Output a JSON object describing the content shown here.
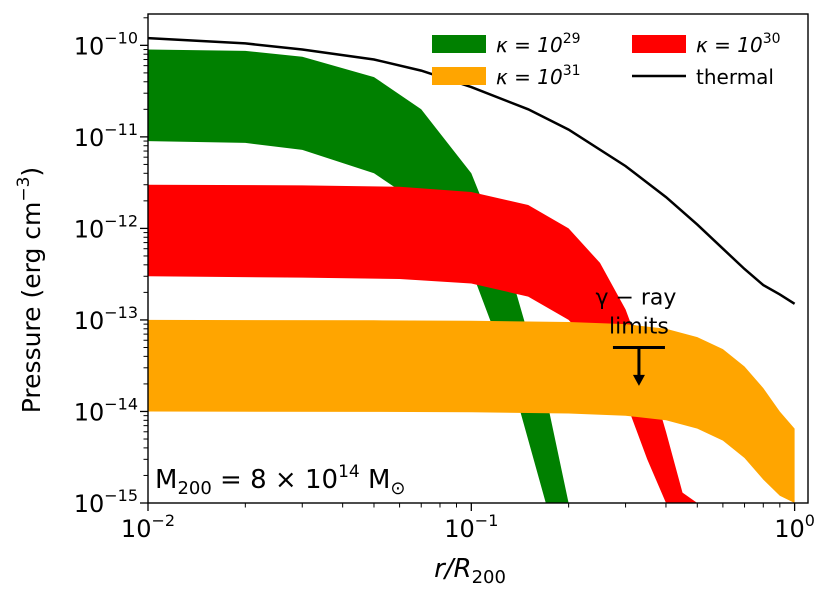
{
  "chart_data": {
    "type": "area",
    "xscale": "log",
    "yscale": "log",
    "xlim": [
      0.01,
      1.1
    ],
    "ylim": [
      1e-15,
      2.2e-10
    ],
    "xlabel": {
      "main": "r/R",
      "sub": "200"
    },
    "ylabel": {
      "main": "Pressure (erg cm",
      "sup": "−3",
      "close": ")"
    },
    "x_ticks": [
      {
        "value": 0.01,
        "base": "10",
        "exp": "−2"
      },
      {
        "value": 0.1,
        "base": "10",
        "exp": "−1"
      },
      {
        "value": 1,
        "base": "10",
        "exp": "0"
      }
    ],
    "y_ticks": [
      {
        "value": 1e-10,
        "base": "10",
        "exp": "−10"
      },
      {
        "value": 1e-11,
        "base": "10",
        "exp": "−11"
      },
      {
        "value": 1e-12,
        "base": "10",
        "exp": "−12"
      },
      {
        "value": 1e-13,
        "base": "10",
        "exp": "−13"
      },
      {
        "value": 1e-14,
        "base": "10",
        "exp": "−14"
      },
      {
        "value": 1e-15,
        "base": "10",
        "exp": "−15"
      }
    ],
    "bands": [
      {
        "name": "kappa-1e29",
        "label_base": "κ = 10",
        "label_exp": "29",
        "color": "#008000",
        "r": [
          0.01,
          0.02,
          0.03,
          0.05,
          0.07,
          0.1,
          0.13,
          0.17,
          0.2
        ],
        "upper": [
          9e-11,
          8.7e-11,
          7.5e-11,
          4.5e-11,
          2e-11,
          4e-12,
          4e-13,
          1.5e-14,
          1e-15
        ],
        "lower": [
          9e-12,
          8.6e-12,
          7.2e-12,
          4e-12,
          1.8e-12,
          3.5e-13,
          3e-14,
          1e-15,
          1e-15
        ]
      },
      {
        "name": "kappa-1e30",
        "label_base": "κ = 10",
        "label_exp": "30",
        "color": "#ff0000",
        "r": [
          0.01,
          0.03,
          0.06,
          0.1,
          0.15,
          0.2,
          0.25,
          0.3,
          0.35,
          0.4,
          0.45,
          0.5,
          0.56
        ],
        "upper": [
          3e-12,
          2.95e-12,
          2.85e-12,
          2.5e-12,
          1.8e-12,
          1e-12,
          4.2e-13,
          1.3e-13,
          3e-14,
          6e-15,
          1.3e-15,
          1e-15,
          1e-15
        ],
        "lower": [
          3e-13,
          2.9e-13,
          2.8e-13,
          2.5e-13,
          1.8e-13,
          1e-13,
          4.2e-14,
          1.3e-14,
          3e-15,
          1e-15,
          1e-15,
          1e-15,
          1e-15
        ]
      },
      {
        "name": "kappa-1e31",
        "label_base": "κ = 10",
        "label_exp": "31",
        "color": "#ffa500",
        "r": [
          0.01,
          0.05,
          0.1,
          0.2,
          0.3,
          0.4,
          0.5,
          0.6,
          0.7,
          0.8,
          0.9,
          1.0
        ],
        "upper": [
          1e-13,
          9.9e-14,
          9.8e-14,
          9.5e-14,
          9e-14,
          8e-14,
          6.5e-14,
          4.8e-14,
          3.1e-14,
          1.8e-14,
          1e-14,
          6.5e-15
        ],
        "lower": [
          1e-14,
          9.9e-15,
          9.8e-15,
          9.5e-15,
          9e-15,
          8e-15,
          6.5e-15,
          4.8e-15,
          3.1e-15,
          1.8e-15,
          1.2e-15,
          1e-15
        ]
      }
    ],
    "lines": [
      {
        "name": "thermal",
        "label": "thermal",
        "color": "#000000",
        "r": [
          0.01,
          0.02,
          0.03,
          0.05,
          0.07,
          0.1,
          0.15,
          0.2,
          0.3,
          0.4,
          0.5,
          0.6,
          0.7,
          0.8,
          0.9,
          1.0
        ],
        "p": [
          1.2e-10,
          1.05e-10,
          9e-11,
          7e-11,
          5.3e-11,
          3.5e-11,
          2e-11,
          1.2e-11,
          4.8e-12,
          2.2e-12,
          1.1e-12,
          6e-13,
          3.6e-13,
          2.4e-13,
          1.9e-13,
          1.5e-13
        ]
      }
    ],
    "legend": {
      "location": "top-right",
      "columns": 2,
      "order": [
        "kappa-1e29",
        "kappa-1e30",
        "kappa-1e31",
        "thermal"
      ]
    },
    "annotations": {
      "gamma_limit": {
        "r": 0.33,
        "p": 5e-14,
        "arrow_to": 2e-14,
        "label_line1": "γ − ray",
        "label_line2": "limits"
      },
      "mass": {
        "prefix": "M",
        "sub": "200",
        "middle": " = 8 × 10",
        "sup": "14",
        "unit": " M",
        "unit_sub": "⊙"
      }
    }
  }
}
